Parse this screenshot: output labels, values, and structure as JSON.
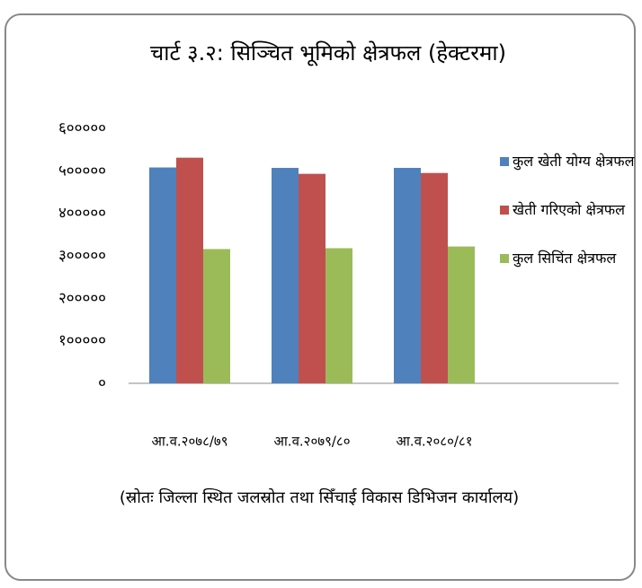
{
  "chart_data": {
    "type": "bar",
    "title": "चार्ट ३.२: सिञ्चित भूमिको क्षेत्रफल (हेक्टरमा)",
    "categories": [
      "आ.व.२०७८/७९",
      "आ.व.२०७९/८०",
      "आ.व.२०८०/८१"
    ],
    "series": [
      {
        "name": "कुल खेती योग्य क्षेत्रफल",
        "color": "#4f81bd",
        "values": [
          508000,
          507000,
          507000
        ]
      },
      {
        "name": "खेती गरिएको क्षेत्रफल",
        "color": "#c0504d",
        "values": [
          531000,
          493000,
          495000
        ]
      },
      {
        "name": "कुल सिचिंत क्षेत्रफल",
        "color": "#9bbb59",
        "values": [
          316000,
          318000,
          322000
        ]
      }
    ],
    "ylim": [
      0,
      600000
    ],
    "yticks": [
      {
        "value": 0,
        "label": "०"
      },
      {
        "value": 100000,
        "label": "१०००००"
      },
      {
        "value": 200000,
        "label": "२०००००"
      },
      {
        "value": 300000,
        "label": "३०००००"
      },
      {
        "value": 400000,
        "label": "४०००००"
      },
      {
        "value": 500000,
        "label": "५०००००"
      },
      {
        "value": 600000,
        "label": "६०००००"
      }
    ],
    "grid": false,
    "legend": "right",
    "source": "(स्रोतः जिल्ला स्थित जलस्रोत तथा सिँचाई विकास डिभिजन कार्यालय)"
  }
}
